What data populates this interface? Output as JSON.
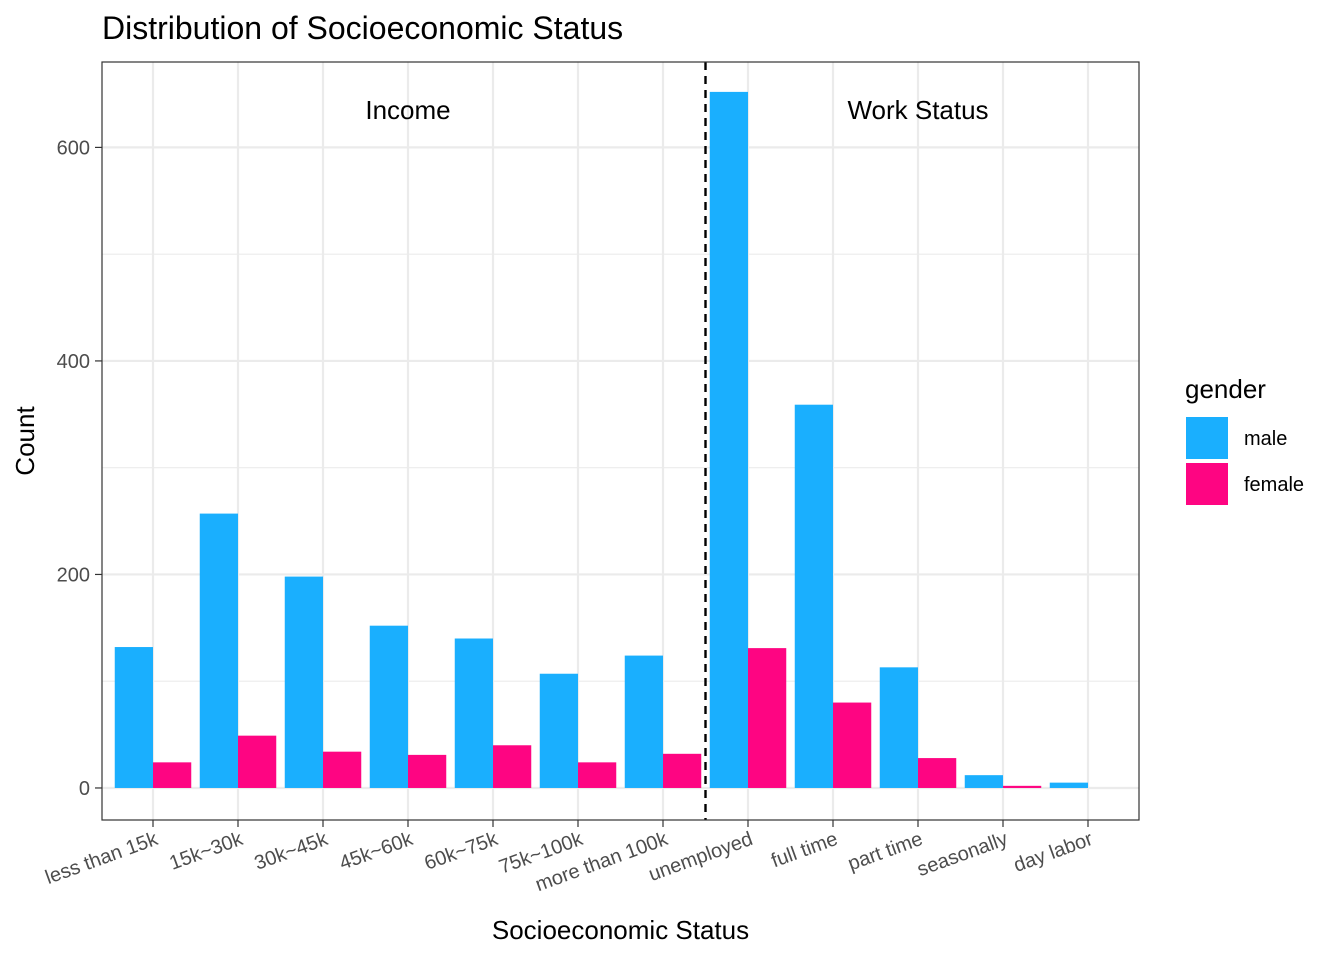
{
  "chart_data": {
    "type": "bar",
    "title": "Distribution of Socioeconomic Status",
    "xlabel": "Socioeconomic Status",
    "ylabel": "Count",
    "ylim": [
      -30,
      680
    ],
    "yticks": [
      0,
      200,
      400,
      600
    ],
    "grid": true,
    "legend_position": "right",
    "categories": [
      "less than 15k",
      "15k~30k",
      "30k~45k",
      "45k~60k",
      "60k~75k",
      "75k~100k",
      "more than 100k",
      "unemployed",
      "full time",
      "part time",
      "seasonally",
      "day labor"
    ],
    "series": [
      {
        "name": "male",
        "color": "#1aaffe",
        "values": [
          132,
          257,
          198,
          152,
          140,
          107,
          124,
          652,
          359,
          113,
          12,
          5
        ]
      },
      {
        "name": "female",
        "color": "#fe0582",
        "values": [
          24,
          49,
          34,
          31,
          40,
          24,
          32,
          131,
          80,
          28,
          2,
          0
        ]
      }
    ],
    "legend_title": "gender",
    "divider_after_category": 7,
    "annotations": [
      {
        "text": "Income",
        "x": 4
      },
      {
        "text": "Work Status",
        "x": 10
      }
    ]
  }
}
